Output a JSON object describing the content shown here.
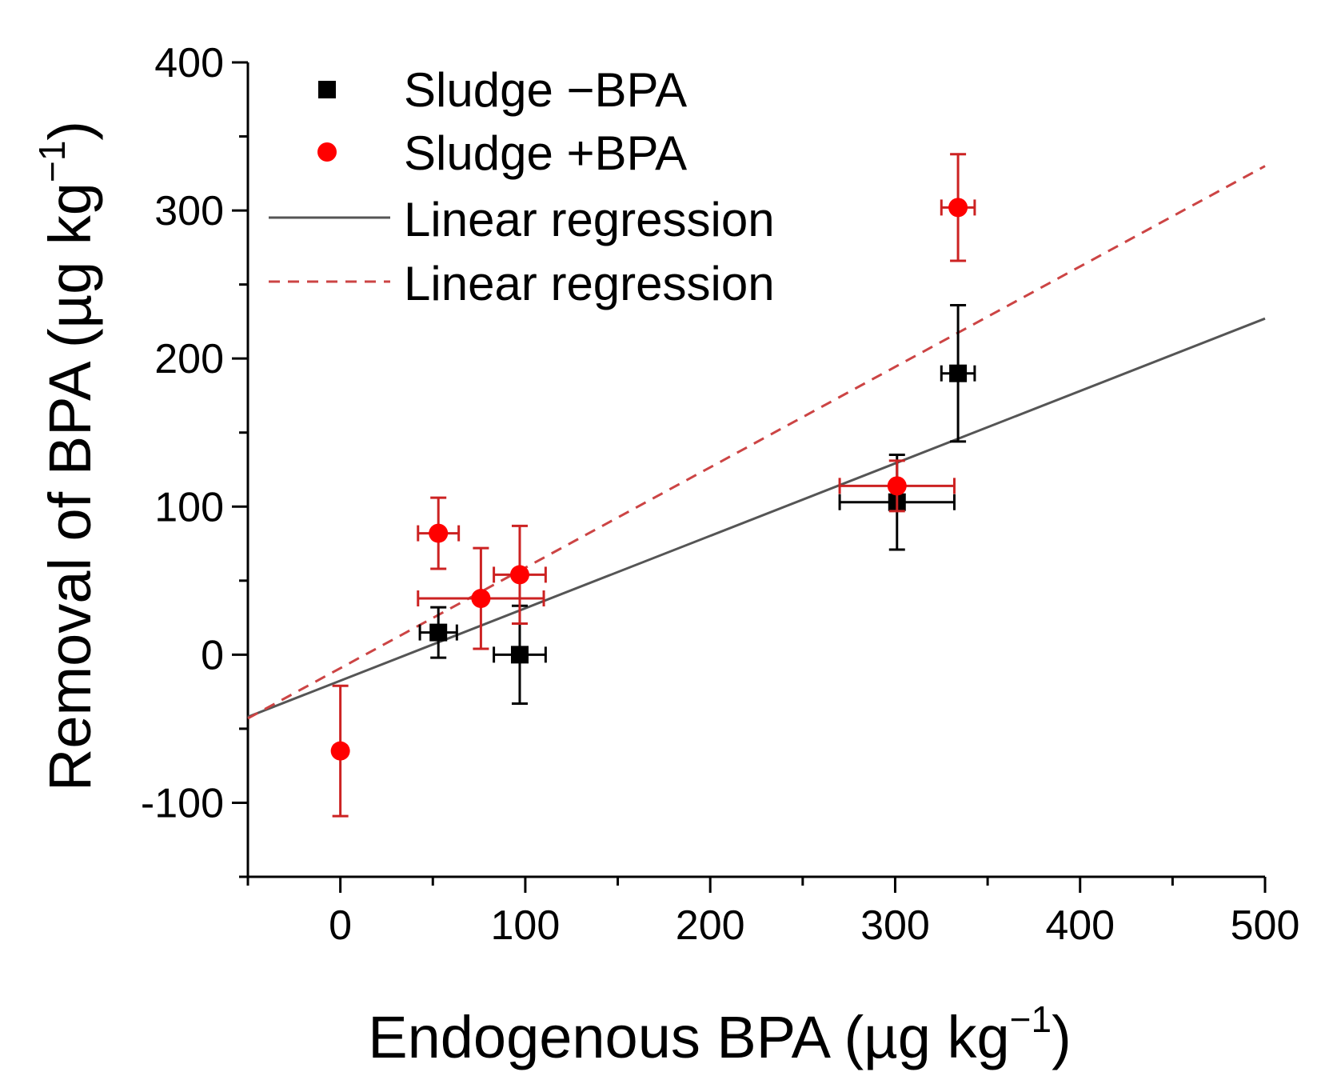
{
  "chart_data": {
    "type": "scatter",
    "xlabel": "Endogenous BPA (µg kg",
    "xlabel_sup": "−1",
    "xlabel_end": ")",
    "ylabel": "Removal of BPA (µg kg",
    "ylabel_sup": "−1",
    "ylabel_end": ")",
    "xlim": [
      -50,
      500
    ],
    "ylim": [
      -150,
      400
    ],
    "xticks": [
      0,
      100,
      200,
      300,
      400,
      500
    ],
    "yticks": [
      -100,
      0,
      100,
      200,
      300,
      400
    ],
    "xtick_labels": [
      "0",
      "100",
      "200",
      "300",
      "400",
      "500"
    ],
    "ytick_labels": [
      "-100",
      "0",
      "100",
      "200",
      "300",
      "400"
    ],
    "grid": false,
    "legend_position": "top-left",
    "series": [
      {
        "name": "Sludge −BPA",
        "marker": "square",
        "color": "#000000",
        "points": [
          {
            "x": 53,
            "y": 15,
            "xerr": 10,
            "yerr": 17
          },
          {
            "x": 97,
            "y": 0,
            "xerr": 14,
            "yerr": 33
          },
          {
            "x": 301,
            "y": 103,
            "xerr": 31,
            "yerr": 32
          },
          {
            "x": 334,
            "y": 190,
            "xerr": 9,
            "yerr": 46
          }
        ]
      },
      {
        "name": "Sludge +BPA",
        "marker": "circle",
        "color": "#ff0000",
        "errorbar_color": "#cc2222",
        "points": [
          {
            "x": 0,
            "y": -65,
            "xerr": 0,
            "yerr": 44
          },
          {
            "x": 53,
            "y": 82,
            "xerr": 11,
            "yerr": 24
          },
          {
            "x": 76,
            "y": 38,
            "xerr": 34,
            "yerr": 34
          },
          {
            "x": 97,
            "y": 54,
            "xerr": 14,
            "yerr": 33
          },
          {
            "x": 301,
            "y": 114,
            "xerr": 31,
            "yerr": 17
          },
          {
            "x": 334,
            "y": 302,
            "xerr": 9,
            "yerr": 36
          }
        ]
      }
    ],
    "regressions": [
      {
        "name": "Linear regression",
        "style": "solid",
        "color": "#555555",
        "x0": -50,
        "y0": -42,
        "x1": 500,
        "y1": 227
      },
      {
        "name": "Linear regression",
        "style": "dashed",
        "color": "#cc4444",
        "x0": -50,
        "y0": -43,
        "x1": 500,
        "y1": 330
      }
    ]
  }
}
